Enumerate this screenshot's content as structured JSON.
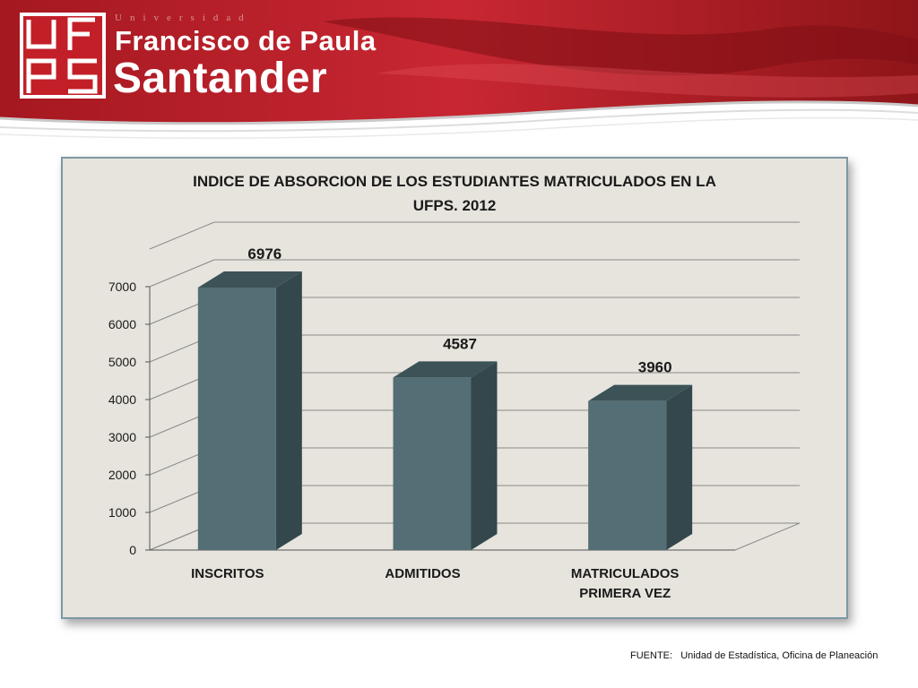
{
  "header": {
    "logo_text": "UFPS",
    "tagline": "Universidad",
    "name_line1": "Francisco de Paula",
    "name_line2": "Santander"
  },
  "chart_data": {
    "type": "bar",
    "style": "3d-column",
    "title_lines": [
      "INDICE DE ABSORCION DE LOS ESTUDIANTES MATRICULADOS EN LA",
      "UFPS.  2012"
    ],
    "categories": [
      [
        "INSCRITOS"
      ],
      [
        "ADMITIDOS"
      ],
      [
        "MATRICULADOS",
        "PRIMERA VEZ"
      ]
    ],
    "values": [
      6976,
      4587,
      3960
    ],
    "data_labels": [
      "6976",
      "4587",
      "3960"
    ],
    "yticks": [
      "0",
      "1000",
      "2000",
      "3000",
      "4000",
      "5000",
      "6000",
      "7000"
    ],
    "ylim": [
      0,
      7000
    ],
    "grid": true,
    "legend": "none",
    "colors": {
      "bar_front": "#546e75",
      "bar_side": "#33474c",
      "bar_top": "#3c5257",
      "background": "#e6e4dc",
      "grid": "#8a8a8a"
    }
  },
  "footer": {
    "source": "FUENTE:   Unidad de Estadística, Oficina de Planeación"
  }
}
